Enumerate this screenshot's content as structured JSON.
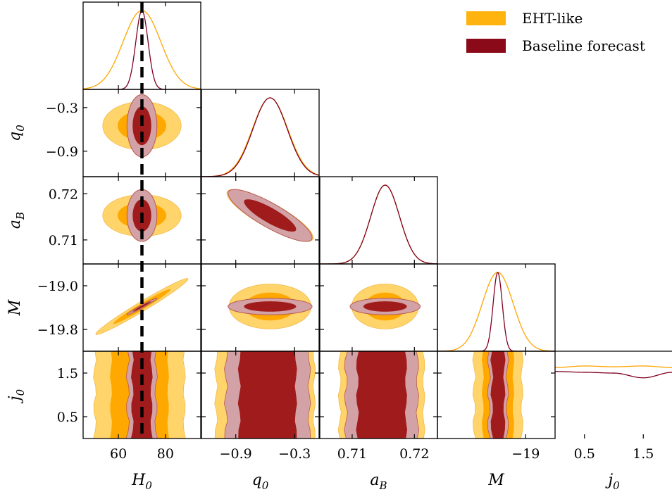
{
  "chart_data": {
    "type": "corner",
    "parameters": [
      {
        "name": "H_0",
        "label_base": "H",
        "label_sub": "0",
        "range": [
          45,
          95
        ],
        "ticks": [
          60,
          80
        ],
        "tick_labels": [
          "60",
          "80"
        ]
      },
      {
        "name": "q_0",
        "label_base": "q",
        "label_sub": "0",
        "range": [
          -1.25,
          -0.05
        ],
        "ticks": [
          -0.9,
          -0.3
        ],
        "tick_labels": [
          "−0.9",
          "−0.3"
        ]
      },
      {
        "name": "a_B",
        "label_base": "a",
        "label_sub": "B",
        "range": [
          0.7048,
          0.7237
        ],
        "ticks": [
          0.71,
          0.72
        ],
        "tick_labels": [
          "0.71",
          "0.72"
        ]
      },
      {
        "name": "M",
        "label_base": "M",
        "label_sub": "",
        "range": [
          -20.2,
          -18.6
        ],
        "ticks": [
          -19.8,
          -19.0
        ],
        "tick_labels": [
          "−19.8",
          "−19.0"
        ],
        "x_ticks": [
          -19.0
        ],
        "x_tick_labels": [
          "−19"
        ]
      },
      {
        "name": "j_0",
        "label_base": "j",
        "label_sub": "0",
        "range": [
          0.0,
          2.0
        ],
        "ticks": [
          0.5,
          1.5
        ],
        "tick_labels": [
          "0.5",
          "1.5"
        ]
      }
    ],
    "truth": {
      "parameter": "H_0",
      "value": 70
    },
    "series": [
      {
        "name": "EHT-like",
        "color": "#FFA500",
        "means": [
          70,
          -0.55,
          0.7153,
          -19.38
        ],
        "sigmas": [
          8,
          0.18,
          0.0023,
          0.21
        ],
        "j0": {
          "x": [
            0.0,
            0.5,
            1.0,
            1.5,
            2.0
          ],
          "p": [
            0.9,
            0.92,
            0.91,
            0.92,
            0.9
          ]
        },
        "contour_scale": {
          "H_0-q_0": [
            0.85,
            0.75
          ],
          "H_0-a_B": [
            0.85,
            0.8
          ],
          "q_0-M": [
            0.95,
            0.8
          ],
          "a_B-M": [
            0.95,
            0.8
          ]
        }
      },
      {
        "name": "Baseline forecast",
        "color": "#8B0A1A",
        "means": [
          70,
          -0.55,
          0.7153,
          -19.38
        ],
        "sigmas": [
          2.6,
          0.175,
          0.0023,
          0.062
        ],
        "j0": {
          "x": [
            0.0,
            0.5,
            1.0,
            1.5,
            2.0
          ],
          "p": [
            0.85,
            0.84,
            0.83,
            0.77,
            0.84
          ]
        }
      }
    ],
    "correlations": {
      "H_0-M": 0.98,
      "q_0-a_B": -0.85
    },
    "bands_j0": {
      "EHT-like": {
        "H_0": [
          50,
          88
        ],
        "q_0": [
          -1.1,
          -0.1
        ],
        "a_B": [
          0.708,
          0.7215
        ],
        "M": [
          -19.7,
          -19.05
        ]
      },
      "Baseline forecast": {
        "H_0": [
          64,
          76
        ],
        "q_0": [
          -1.0,
          -0.15
        ],
        "a_B": [
          0.709,
          0.7205
        ],
        "M": [
          -19.5,
          -19.25
        ]
      }
    },
    "legend": {
      "placement": "top-right"
    }
  }
}
